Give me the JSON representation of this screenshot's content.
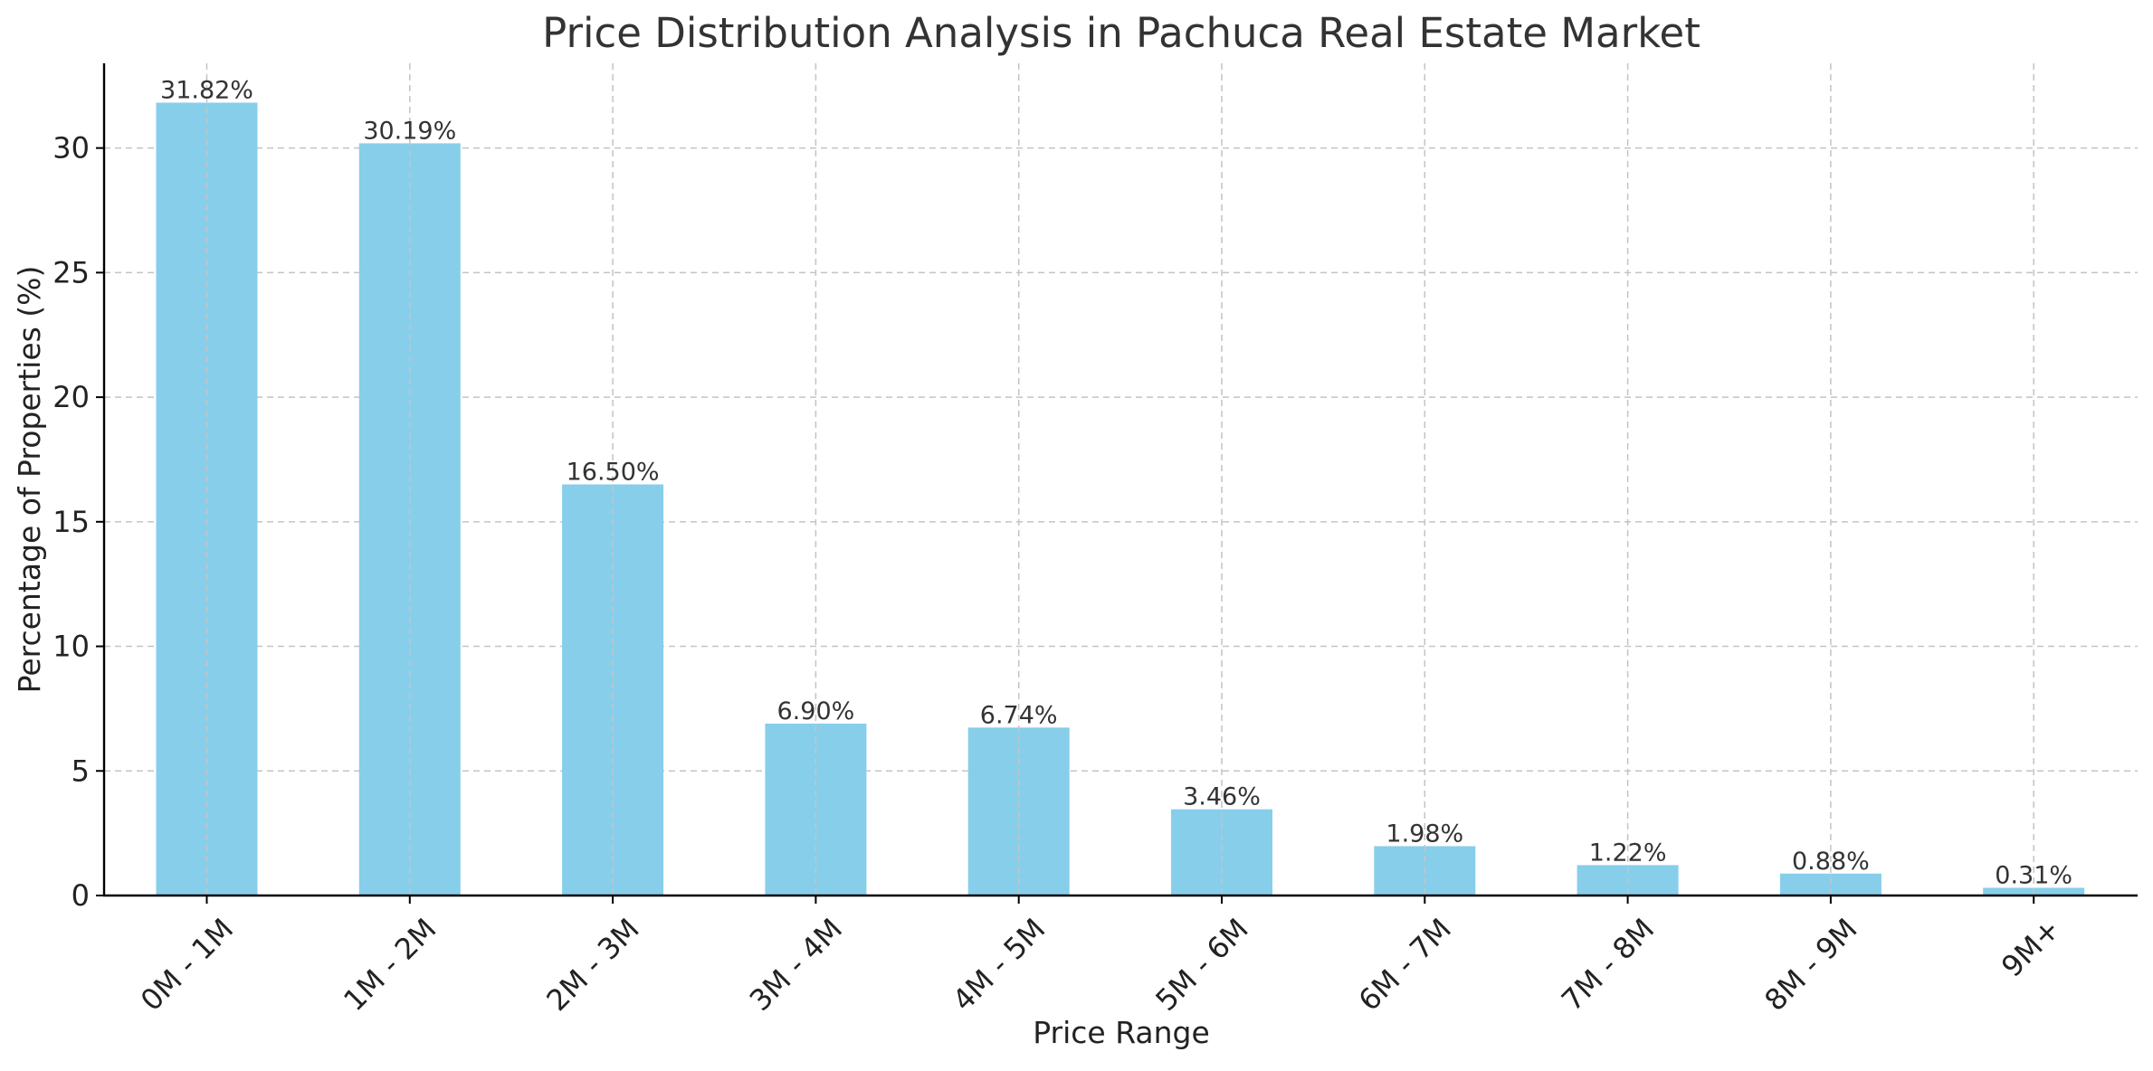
{
  "chart_data": {
    "type": "bar",
    "title": "Price Distribution Analysis in Pachuca Real Estate Market",
    "xlabel": "Price Range",
    "ylabel": "Percentage of Properties (%)",
    "categories": [
      "0M - 1M",
      "1M - 2M",
      "2M - 3M",
      "3M - 4M",
      "4M - 5M",
      "5M - 6M",
      "6M - 7M",
      "7M - 8M",
      "8M - 9M",
      "9M+"
    ],
    "values": [
      31.82,
      30.19,
      16.5,
      6.9,
      6.74,
      3.46,
      1.98,
      1.22,
      0.88,
      0.31
    ],
    "data_labels": [
      "31.82%",
      "30.19%",
      "16.50%",
      "6.90%",
      "6.74%",
      "3.46%",
      "1.98%",
      "1.22%",
      "0.88%",
      "0.31%"
    ],
    "yticks": [
      0,
      5,
      10,
      15,
      20,
      25,
      30
    ],
    "ylim": [
      0,
      33.4
    ],
    "grid": true,
    "bar_color": "#87CEEB"
  }
}
